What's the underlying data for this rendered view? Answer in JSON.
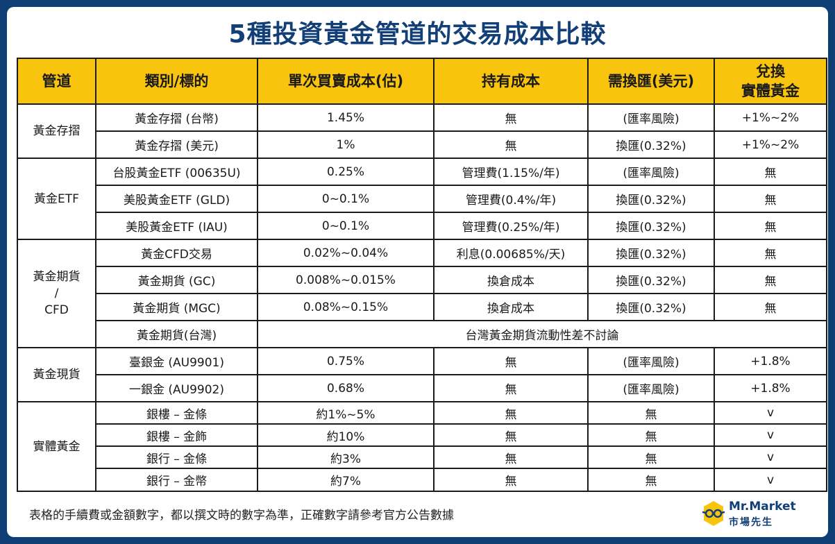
{
  "title": "5種投資黃金管道的交易成本比較",
  "headers": [
    "管道",
    "類別/標的",
    "單次買賣成本(估)",
    "持有成本",
    "需換匯(美元)",
    "兌換",
    "實體黃金"
  ],
  "groups": {
    "g1": "黃金存摺",
    "g2": "黃金ETF",
    "g3_line1": "黃金期貨",
    "g3_line2": "/",
    "g3_line3": "CFD",
    "g4": "黃金現貨",
    "g5": "實體黃金"
  },
  "rows": [
    {
      "item": "黃金存摺 (台幣)",
      "trade": "1.45%",
      "hold": "無",
      "fx": "(匯率風險)",
      "physical": "+1%~2%"
    },
    {
      "item": "黃金存摺 (美元)",
      "trade": "1%",
      "hold": "無",
      "fx": "換匯(0.32%)",
      "physical": "+1%~2%"
    },
    {
      "item": "台股黃金ETF (00635U)",
      "trade": "0.25%",
      "hold": "管理費(1.15%/年)",
      "fx": "(匯率風險)",
      "physical": "無"
    },
    {
      "item": "美股黃金ETF (GLD)",
      "trade": "0~0.1%",
      "hold": "管理費(0.4%/年)",
      "fx": "換匯(0.32%)",
      "physical": "無"
    },
    {
      "item": "美股黃金ETF (IAU)",
      "trade": "0~0.1%",
      "hold": "管理費(0.25%/年)",
      "fx": "換匯(0.32%)",
      "physical": "無"
    },
    {
      "item": "黃金CFD交易",
      "trade": "0.02%~0.04%",
      "hold": "利息(0.00685%/天)",
      "fx": "換匯(0.32%)",
      "physical": "無"
    },
    {
      "item": "黃金期貨 (GC)",
      "trade": "0.008%~0.015%",
      "hold": "換倉成本",
      "fx": "換匯(0.32%)",
      "physical": "無"
    },
    {
      "item": "黃金期貨 (MGC)",
      "trade": "0.08%~0.15%",
      "hold": "換倉成本",
      "fx": "換匯(0.32%)",
      "physical": "無"
    },
    {
      "item": "黃金期貨(台灣)",
      "merged": "台灣黃金期貨流動性差不討論"
    },
    {
      "item": "臺銀金 (AU9901)",
      "trade": "0.75%",
      "hold": "無",
      "fx": "(匯率風險)",
      "physical": "+1.8%"
    },
    {
      "item": "一銀金 (AU9902)",
      "trade": "0.68%",
      "hold": "無",
      "fx": "(匯率風險)",
      "physical": "+1.8%"
    },
    {
      "item": "銀樓 – 金條",
      "trade": "約1%~5%",
      "hold": "無",
      "fx": "無",
      "physical": "v"
    },
    {
      "item": "銀樓 – 金飾",
      "trade": "約10%",
      "hold": "無",
      "fx": "無",
      "physical": "v"
    },
    {
      "item": "銀行 – 金條",
      "trade": "約3%",
      "hold": "無",
      "fx": "無",
      "physical": "v"
    },
    {
      "item": "銀行 – 金幣",
      "trade": "約7%",
      "hold": "無",
      "fx": "無",
      "physical": "v"
    }
  ],
  "note": "表格的手續費或金額數字，都以撰文時的數字為準，正確數字請參考官方公告數據",
  "logo": {
    "main": "Mr.Market",
    "sub": "市場先生",
    "icon": "mr-market-glasses-icon",
    "accent": "#f9c40d",
    "brand": "#123f77"
  }
}
